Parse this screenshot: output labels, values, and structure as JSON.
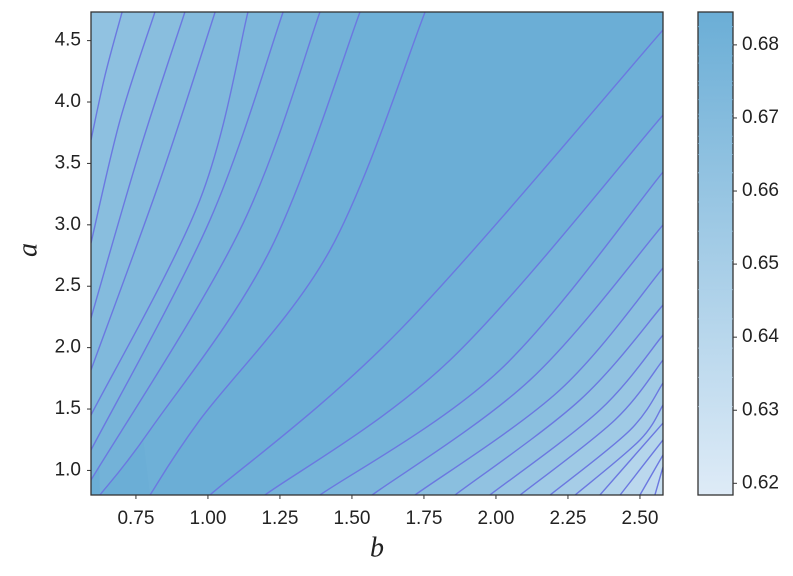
{
  "chart_data": {
    "type": "contour",
    "xlabel": "b",
    "ylabel": "a",
    "xlim": [
      0.594,
      2.58
    ],
    "ylim": [
      0.8,
      4.733
    ],
    "xticks": [
      0.75,
      {
        "value": 1,
        "label": "1.00"
      },
      1.25,
      {
        "value": 1.5,
        "label": "1.50"
      },
      1.75,
      {
        "value": 2,
        "label": "2.00"
      },
      2.25,
      {
        "value": 2.5,
        "label": "2.50"
      }
    ],
    "yticks": [
      {
        "value": 1,
        "label": "1.0"
      },
      1.5,
      {
        "value": 2,
        "label": "2.0"
      },
      2.5,
      {
        "value": 3,
        "label": "3.0"
      },
      3.5,
      {
        "value": 4,
        "label": "4.0"
      },
      4.5
    ],
    "clim": [
      0.6184,
      0.6845
    ],
    "cticks": [
      0.62,
      0.63,
      0.64,
      0.65,
      0.66,
      0.67,
      0.68
    ],
    "cmap": [
      "#deebf7",
      "#6baed6"
    ],
    "line_color": "#6b78e0",
    "contours": [
      {
        "side": "left",
        "level": 0.6825,
        "b": [
          1.754,
          1.424,
          0.972,
          0.799
        ],
        "a": [
          4.733,
          2.795,
          1.411,
          0.8
        ]
      },
      {
        "side": "left",
        "level": 0.68,
        "b": [
          1.528,
          1.216,
          0.799,
          0.625
        ],
        "a": [
          4.733,
          2.795,
          1.329,
          0.8
        ]
      },
      {
        "side": "left",
        "level": 0.6775,
        "b": [
          1.389,
          1.111,
          0.594
        ],
        "a": [
          4.733,
          2.958,
          0.922
        ]
      },
      {
        "side": "left",
        "level": 0.675,
        "b": [
          1.261,
          1.007,
          0.594
        ],
        "a": [
          4.733,
          3.039,
          1.166
        ]
      },
      {
        "side": "left",
        "level": 0.6725,
        "b": [
          1.139,
          0.972,
          0.594
        ],
        "a": [
          4.733,
          3.202,
          1.451
        ]
      },
      {
        "side": "left",
        "level": 0.67,
        "b": [
          1.025,
          0.834,
          0.594
        ],
        "a": [
          4.733,
          3.365,
          1.818
        ]
      },
      {
        "side": "left",
        "level": 0.6675,
        "b": [
          0.92,
          0.764,
          0.594
        ],
        "a": [
          4.733,
          3.609,
          2.241
        ]
      },
      {
        "side": "left",
        "level": 0.665,
        "b": [
          0.816,
          0.695,
          0.594
        ],
        "a": [
          4.733,
          3.854,
          2.852
        ]
      },
      {
        "side": "left",
        "level": 0.6625,
        "b": [
          0.702,
          0.643,
          0.594
        ],
        "a": [
          4.733,
          4.22,
          3.691
        ]
      },
      {
        "side": "right",
        "level": 0.6825,
        "b": [
          1.007,
          1.667,
          2.58
        ],
        "a": [
          0.8,
          2.144,
          4.587
        ]
      },
      {
        "side": "right",
        "level": 0.6785,
        "b": [
          1.198,
          1.841,
          2.58
        ],
        "a": [
          0.8,
          1.899,
          3.894
        ]
      },
      {
        "side": "right",
        "level": 0.6745,
        "b": [
          1.389,
          2.014,
          2.58
        ],
        "a": [
          0.8,
          1.818,
          3.43
        ]
      },
      {
        "side": "right",
        "level": 0.6705,
        "b": [
          1.57,
          2.118,
          2.58
        ],
        "a": [
          0.8,
          1.736,
          2.999
        ]
      },
      {
        "side": "right",
        "level": 0.6665,
        "b": [
          1.719,
          2.222,
          2.58
        ],
        "a": [
          0.8,
          1.655,
          2.649
        ]
      },
      {
        "side": "right",
        "level": 0.6625,
        "b": [
          1.858,
          2.292,
          2.58
        ],
        "a": [
          0.8,
          1.574,
          2.347
        ]
      },
      {
        "side": "right",
        "level": 0.6585,
        "b": [
          1.979,
          2.361,
          2.58
        ],
        "a": [
          0.8,
          1.492,
          2.103
        ]
      },
      {
        "side": "right",
        "level": 0.6545,
        "b": [
          2.084,
          2.413,
          2.58
        ],
        "a": [
          0.8,
          1.411,
          1.899
        ]
      },
      {
        "side": "right",
        "level": 0.6505,
        "b": [
          2.188,
          2.466,
          2.58
        ],
        "a": [
          0.8,
          1.329,
          1.712
        ]
      },
      {
        "side": "right",
        "level": 0.6465,
        "b": [
          2.275,
          2.5,
          2.58
        ],
        "a": [
          0.8,
          1.248,
          1.533
        ]
      },
      {
        "side": "right",
        "level": 0.6425,
        "b": [
          2.361,
          2.58
        ],
        "a": [
          0.8,
          1.386
        ]
      },
      {
        "side": "right",
        "level": 0.6385,
        "b": [
          2.431,
          2.58
        ],
        "a": [
          0.8,
          1.248
        ]
      },
      {
        "side": "right",
        "level": 0.6345,
        "b": [
          2.5,
          2.58
        ],
        "a": [
          0.8,
          1.126
        ]
      },
      {
        "side": "right",
        "level": 0.6305,
        "b": [
          2.552,
          2.58
        ],
        "a": [
          0.8,
          1.028
        ]
      }
    ]
  }
}
